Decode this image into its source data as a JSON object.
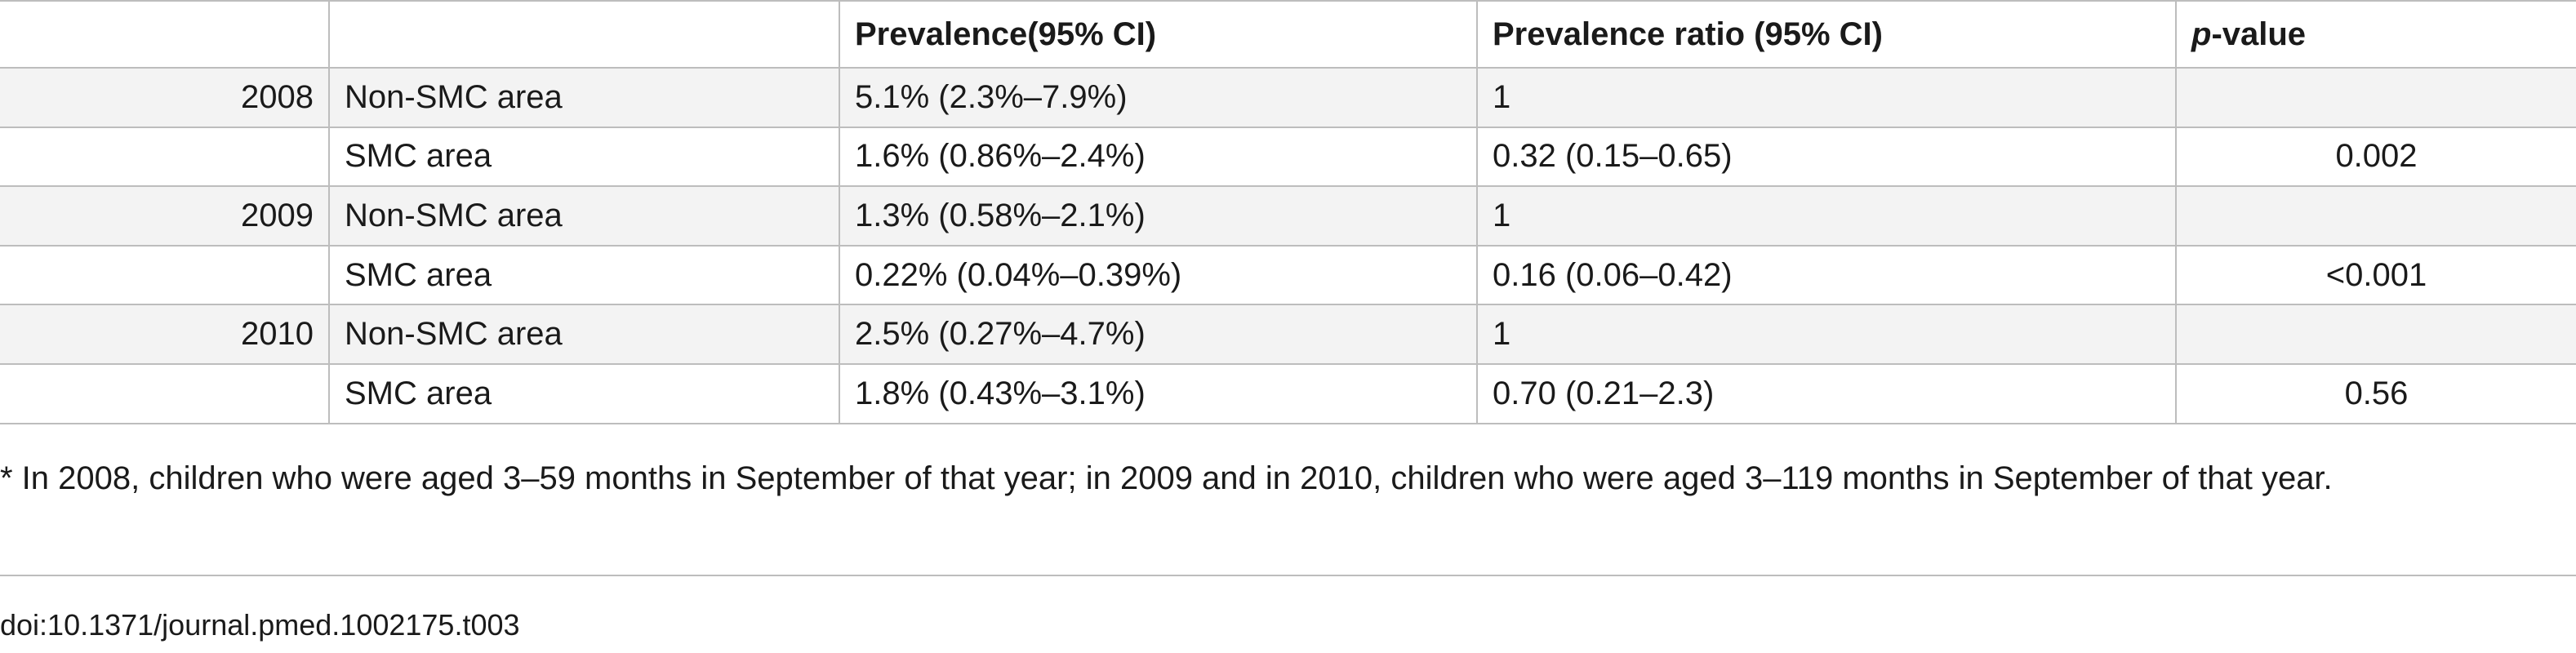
{
  "table": {
    "headers": {
      "year": "",
      "area": "",
      "prevalence": "Prevalence(95% CI)",
      "ratio": "Prevalence ratio (95% CI)",
      "pvalue_italic": "p",
      "pvalue_rest": "-value"
    },
    "rows": [
      {
        "year": "2008",
        "area": "Non-SMC area",
        "prevalence": "5.1% (2.3%–7.9%)",
        "ratio": "1",
        "pvalue": ""
      },
      {
        "year": "",
        "area": "SMC area",
        "prevalence": "1.6% (0.86%–2.4%)",
        "ratio": "0.32 (0.15–0.65)",
        "pvalue": "0.002"
      },
      {
        "year": "2009",
        "area": "Non-SMC area",
        "prevalence": "1.3% (0.58%–2.1%)",
        "ratio": "1",
        "pvalue": ""
      },
      {
        "year": "",
        "area": "SMC area",
        "prevalence": "0.22% (0.04%–0.39%)",
        "ratio": "0.16 (0.06–0.42)",
        "pvalue": "<0.001"
      },
      {
        "year": "2010",
        "area": "Non-SMC area",
        "prevalence": "2.5% (0.27%–4.7%)",
        "ratio": "1",
        "pvalue": ""
      },
      {
        "year": "",
        "area": "SMC area",
        "prevalence": "1.8% (0.43%–3.1%)",
        "ratio": "0.70 (0.21–2.3)",
        "pvalue": "0.56"
      }
    ]
  },
  "footnote": "* In 2008, children who were aged 3–59 months in September of that year; in 2009 and in 2010, children who were aged 3–119 months in September of that year.",
  "doi": "doi:10.1371/journal.pmed.1002175.t003",
  "colors": {
    "border": "#bdbdbd",
    "stripe": "#f3f3f3",
    "text": "#1a1a1a"
  }
}
